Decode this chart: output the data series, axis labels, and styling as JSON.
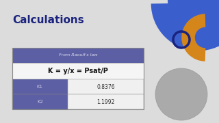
{
  "title": "Calculations",
  "title_color": "#1a237e",
  "bg_color": "#dcdcdc",
  "table_header": "From Raoult's law",
  "formula": "K = y/x = Psat/P",
  "rows": [
    {
      "label": "K1",
      "value": "0.8376"
    },
    {
      "label": "K2",
      "value": "1.1992"
    }
  ],
  "header_bg": "#5c5fa3",
  "header_text": "#e0e0f0",
  "formula_bg": "#f5f5f5",
  "formula_text": "#111111",
  "row_bg": "#5c5fa3",
  "row_text": "#c8c8e8",
  "value_bg": "#f0f0f0",
  "value_text": "#333333",
  "deco_big_circle_color": "#3a5fcd",
  "deco_small_circle_color": "#1a237e",
  "deco_orange_color": "#d4861a",
  "person_circle_color": "#aaaaaa"
}
